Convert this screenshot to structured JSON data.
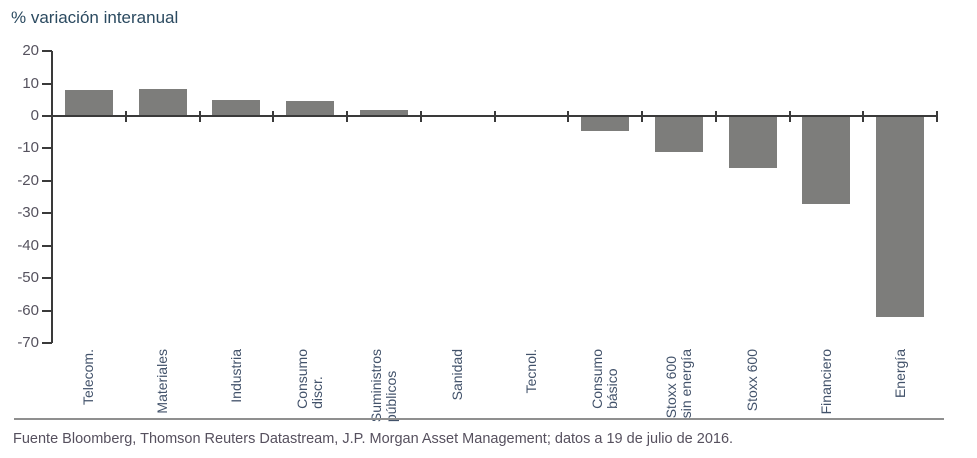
{
  "chart": {
    "title": "% variación interanual",
    "source": "Fuente Bloomberg, Thomson Reuters Datastream, J.P. Morgan Asset Management; datos a 19 de julio de 2016."
  },
  "chart_data": {
    "type": "bar",
    "title": "% variación interanual",
    "categories": [
      "Telecom.",
      "Materiales",
      "Industria",
      "Consumo\ndiscr.",
      "Suministros\npúblicos",
      "Sanidad",
      "Tecnol.",
      "Consumo\nbásico",
      "Stoxx 600\nsin energía",
      "Stoxx 600",
      "Financiero",
      "Energía"
    ],
    "values": [
      8,
      8.2,
      5,
      4.5,
      2,
      0,
      0,
      -4.5,
      -11,
      -16,
      -27,
      -62
    ],
    "xlabel": "",
    "ylabel": "",
    "ylim": [
      -70,
      20
    ],
    "yticks": [
      20,
      10,
      0,
      -10,
      -20,
      -30,
      -40,
      -50,
      -60,
      -70
    ],
    "grid": false,
    "legend": "none",
    "bar_color": "#7d7d7b",
    "axis_color": "#3a3a3a",
    "tick_label_color": "#55525e",
    "category_label_color": "#42526a",
    "title_color": "#2b4a60",
    "source": "Fuente Bloomberg, Thomson Reuters Datastream, J.P. Morgan Asset Management; datos a 19 de julio de 2016."
  }
}
